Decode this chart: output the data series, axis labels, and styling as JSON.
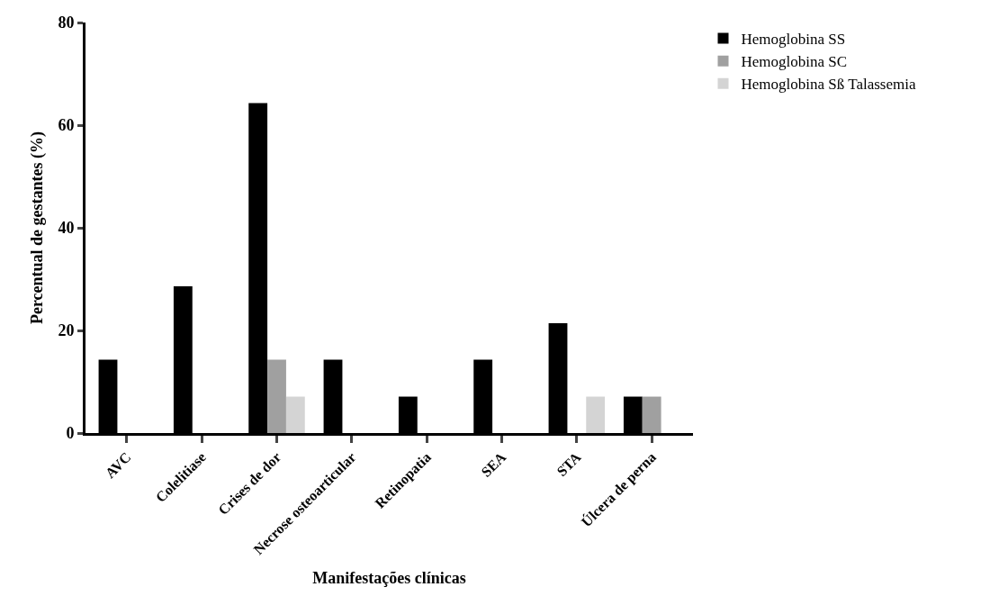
{
  "chart_data": {
    "type": "bar",
    "xlabel": "Manifestações clínicas",
    "ylabel": "Percentual de gestantes (%)",
    "categories": [
      "AVC",
      "Colelitiase",
      "Crises de dor",
      "Necrose osteoarticular",
      "Retinopatia",
      "SEA",
      "STA",
      "Úlcera de perna"
    ],
    "series": [
      {
        "name": "Hemoglobina SS",
        "color": "#000000",
        "values": [
          14.3,
          28.6,
          64.3,
          14.3,
          7.1,
          14.3,
          21.4,
          7.1
        ]
      },
      {
        "name": "Hemoglobina SC",
        "color": "#a0a0a0",
        "values": [
          0,
          0,
          14.3,
          0,
          0,
          0,
          0,
          7.1
        ]
      },
      {
        "name": "Hemoglobina Sß Talassemia",
        "color": "#d4d4d4",
        "values": [
          0,
          0,
          7.1,
          0,
          0,
          0,
          7.1,
          0
        ]
      }
    ],
    "ylim": [
      0,
      80
    ],
    "yticks": [
      0,
      20,
      40,
      60,
      80
    ],
    "grid": false,
    "legend": "top right"
  }
}
